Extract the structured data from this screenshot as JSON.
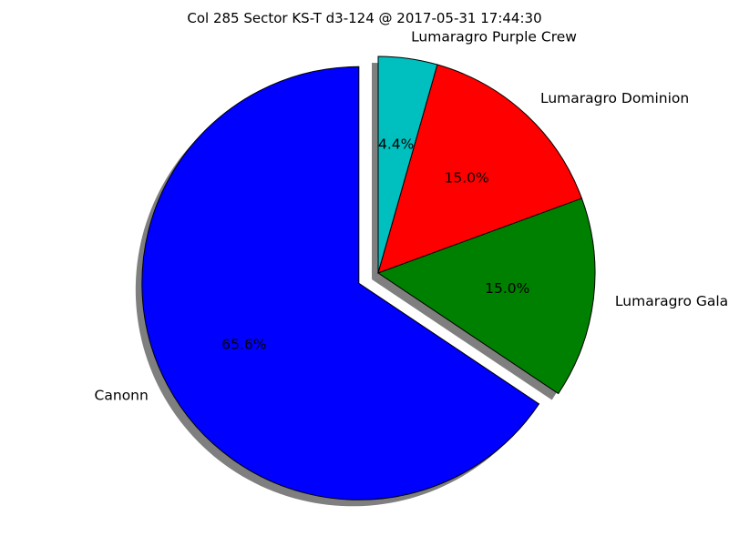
{
  "chart_data": {
    "type": "pie",
    "title": "Col 285 Sector KS-T d3-124 @ 2017-05-31 17:44:30",
    "slices": [
      {
        "label": "Lumaragro Purple Crew",
        "value": 4.4,
        "percent_label": "4.4%",
        "color": "#00bfbf",
        "exploded": false
      },
      {
        "label": "Lumaragro Dominion",
        "value": 15.0,
        "percent_label": "15.0%",
        "color": "#ff0000",
        "exploded": false
      },
      {
        "label": "Lumaragro Galactic",
        "value": 15.0,
        "percent_label": "15.0%",
        "color": "#008000",
        "exploded": false
      },
      {
        "label": "Canonn",
        "value": 65.6,
        "percent_label": "65.6%",
        "color": "#0000ff",
        "exploded": true
      }
    ],
    "start_angle_deg": 90,
    "direction": "clockwise",
    "shadow": true,
    "legend": "none"
  }
}
